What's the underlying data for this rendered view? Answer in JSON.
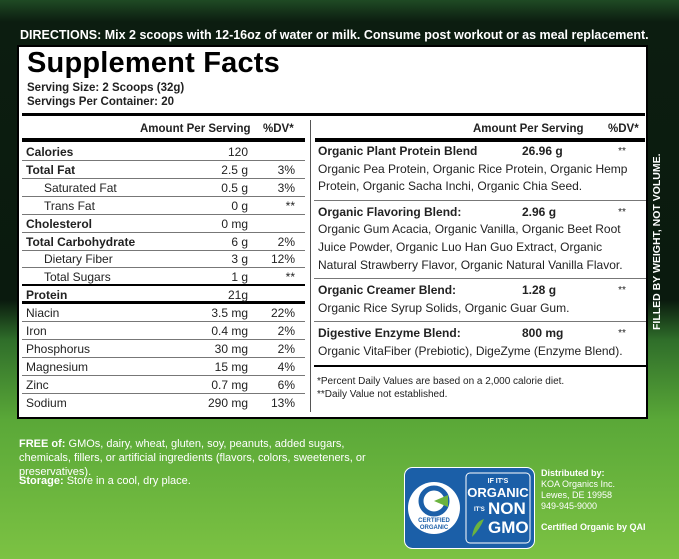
{
  "directions": "DIRECTIONS: Mix 2 scoops with 12-16oz of water or milk. Consume post workout or as meal replacement.",
  "facts": {
    "title": "Supplement Facts",
    "serving_size": "Serving Size: 2 Scoops (32g)",
    "servings": "Servings Per Container: 20",
    "left_header": [
      "Amount Per Serving",
      "%DV*"
    ],
    "left_rows": [
      {
        "name": "Calories",
        "amount": "120"
      },
      {
        "name": "Total Fat",
        "amount": "2.5 g",
        "dv": "3%"
      },
      {
        "name": "Saturated Fat",
        "amount": "0.5 g",
        "dv": "3%"
      },
      {
        "name": "Trans Fat",
        "amount": "0 g",
        "dv": "**"
      },
      {
        "name": "Cholesterol",
        "amount": "0 mg"
      },
      {
        "name": "Total Carbohydrate",
        "amount": "6 g",
        "dv": "2%"
      },
      {
        "name": "Dietary Fiber",
        "amount": "3 g",
        "dv": "12%"
      },
      {
        "name": "Total Sugars",
        "amount": "1 g",
        "dv": "**"
      },
      {
        "name": "Protein",
        "amount": "21g"
      },
      {
        "name": "Niacin",
        "amount": "3.5 mg",
        "dv": "22%"
      },
      {
        "name": "Iron",
        "amount": "0.4 mg",
        "dv": "2%"
      },
      {
        "name": "Phosphorus",
        "amount": "30 mg",
        "dv": "2%"
      },
      {
        "name": "Magnesium",
        "amount": "15 mg",
        "dv": "4%"
      },
      {
        "name": "Zinc",
        "amount": "0.7 mg",
        "dv": "6%"
      },
      {
        "name": "Sodium",
        "amount": "290 mg",
        "dv": "13%"
      }
    ],
    "right_header": [
      "Amount Per Serving",
      "%DV*"
    ],
    "blends": [
      {
        "name": "Organic Plant Protein Blend",
        "amount": "26.96 g",
        "dv": "**",
        "ingredients": "Organic Pea Protein, Organic Rice Protein, Organic Hemp Protein, Organic Sacha Inchi, Organic Chia Seed."
      },
      {
        "name": "Organic Flavoring Blend:",
        "amount": "2.96 g",
        "dv": "**",
        "ingredients": "Organic Gum Acacia, Organic Vanilla, Organic Beet Root Juice Powder, Organic Luo Han Guo Extract, Organic Natural Strawberry Flavor, Organic Natural Vanilla Flavor."
      },
      {
        "name": "Organic Creamer Blend:",
        "amount": "1.28 g",
        "dv": "**",
        "ingredients": "Organic Rice Syrup Solids, Organic Guar Gum."
      },
      {
        "name": "Digestive Enzyme Blend:",
        "amount": "800 mg",
        "dv": "**",
        "ingredients": "Organic VitaFiber (Prebiotic), DigeZyme (Enzyme Blend)."
      }
    ],
    "footnotes": [
      "*Percent Daily Values are based on a 2,000 calorie diet.",
      "**Daily Value not established."
    ]
  },
  "side_text": "FILLED BY WEIGHT, NOT VOLUME.",
  "free": {
    "label": "FREE of:",
    "text": "GMOs, dairy, wheat, gluten, soy, peanuts, added sugars, chemicals, fillers, or artificial ingredients (flavors, colors, sweeteners, or preservatives)."
  },
  "storage": {
    "label": "Storage:",
    "text": "Store in a cool, dry place."
  },
  "logos": {
    "certified": [
      "CERTIFIED",
      "ORGANIC"
    ],
    "non_gmo": [
      "IF IT'S",
      "ORGANIC",
      "IT'S",
      "NON",
      "GMO"
    ]
  },
  "distributor": [
    "Distributed by:",
    "KOA Organics Inc.",
    "Lewes, DE 19958",
    "949-945-9000"
  ],
  "certifier": "Certified Organic by QAI"
}
